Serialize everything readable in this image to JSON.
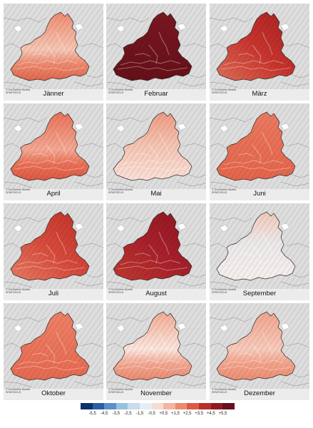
{
  "credit": {
    "line1": "© GeoSphere Austria",
    "line2": "SPARTACUS"
  },
  "panels": [
    {
      "month": "Jänner",
      "base": "#ef8b70",
      "light": "#f6c7b5",
      "dark": "#e0684c",
      "pattern": "mixed"
    },
    {
      "month": "Februar",
      "base": "#7a1722",
      "light": "#8f2430",
      "dark": "#661019",
      "pattern": "uniform"
    },
    {
      "month": "März",
      "base": "#c8342d",
      "light": "#de6e58",
      "dark": "#a61f22",
      "pattern": "gradient"
    },
    {
      "month": "April",
      "base": "#ea7258",
      "light": "#f4a995",
      "dark": "#de5a42",
      "pattern": "mixed"
    },
    {
      "month": "Mai",
      "base": "#f5c2b0",
      "light": "#fbe1d8",
      "dark": "#ef9a82",
      "pattern": "light"
    },
    {
      "month": "Juni",
      "base": "#ec7a5f",
      "light": "#f2a38e",
      "dark": "#e4654c",
      "pattern": "uniform"
    },
    {
      "month": "Juli",
      "base": "#d6493a",
      "light": "#e87a63",
      "dark": "#bf3029",
      "pattern": "gradient"
    },
    {
      "month": "August",
      "base": "#a8202a",
      "light": "#c0392f",
      "dark": "#8d1622",
      "pattern": "gradient"
    },
    {
      "month": "September",
      "base": "#eceaea",
      "light": "#f6efec",
      "dark": "#f3c9b9",
      "pattern": "light"
    },
    {
      "month": "Oktober",
      "base": "#ee8166",
      "light": "#f3a690",
      "dark": "#e66a50",
      "pattern": "uniform"
    },
    {
      "month": "November",
      "base": "#f4aa94",
      "light": "#fce6de",
      "dark": "#ec8a70",
      "pattern": "mixed"
    },
    {
      "month": "Dezember",
      "base": "#f3a48c",
      "light": "#f8cbbc",
      "dark": "#ec8e74",
      "pattern": "mixed"
    }
  ],
  "legend": {
    "colors": [
      "#0d2f6b",
      "#2a5ea4",
      "#5b8fc6",
      "#97c0e0",
      "#c6dcee",
      "#e6eef5",
      "#f5dcd2",
      "#f3b4a0",
      "#ec8a6f",
      "#dc5a45",
      "#b8302b",
      "#8f1a22",
      "#67101a"
    ],
    "ticks": [
      "-5,5",
      "-4,5",
      "-3,5",
      "-2,5",
      "-1,5",
      "-0,5",
      "+0,5",
      "+1,5",
      "+2,5",
      "+3,5",
      "+4,5",
      "+5,5"
    ]
  }
}
